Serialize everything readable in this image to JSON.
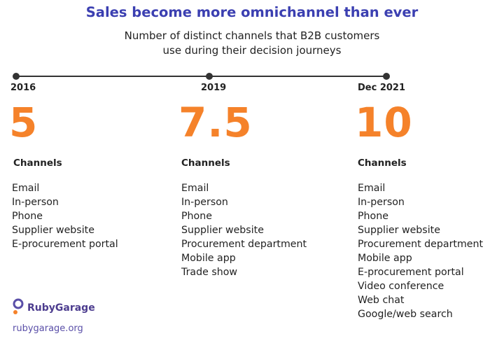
{
  "header": {
    "title": "Sales become more omnichannel than ever",
    "subtitle_line1": "Number of distinct channels that B2B customers",
    "subtitle_line2": "use during their decision journeys"
  },
  "colors": {
    "title": "#3b3fb1",
    "count": "#f5822a",
    "brand": "#5a4fa8"
  },
  "chart_data": {
    "type": "table",
    "title": "Sales become more omnichannel than ever",
    "subtitle": "Number of distinct channels that B2B customers use during their decision journeys",
    "columns": [
      {
        "year": "2016",
        "count": "5",
        "label": "Channels",
        "channels": [
          "Email",
          "In-person",
          "Phone",
          "Supplier website",
          "E-procurement portal"
        ]
      },
      {
        "year": "2019",
        "count": "7.5",
        "label": "Channels",
        "channels": [
          "Email",
          "In-person",
          "Phone",
          "Supplier website",
          "Procurement department",
          "Mobile app",
          "Trade show"
        ]
      },
      {
        "year": "Dec 2021",
        "count": "10",
        "label": "Channels",
        "channels": [
          "Email",
          "In-person",
          "Phone",
          "Supplier website",
          "Procurement department",
          "Mobile app",
          "E-procurement portal",
          "Video conference",
          "Web chat",
          "Google/web search"
        ]
      }
    ]
  },
  "footer": {
    "brand": "RubyGarage",
    "site": "rubygarage.org",
    "logo_icon": "rubygarage-logo-icon"
  }
}
